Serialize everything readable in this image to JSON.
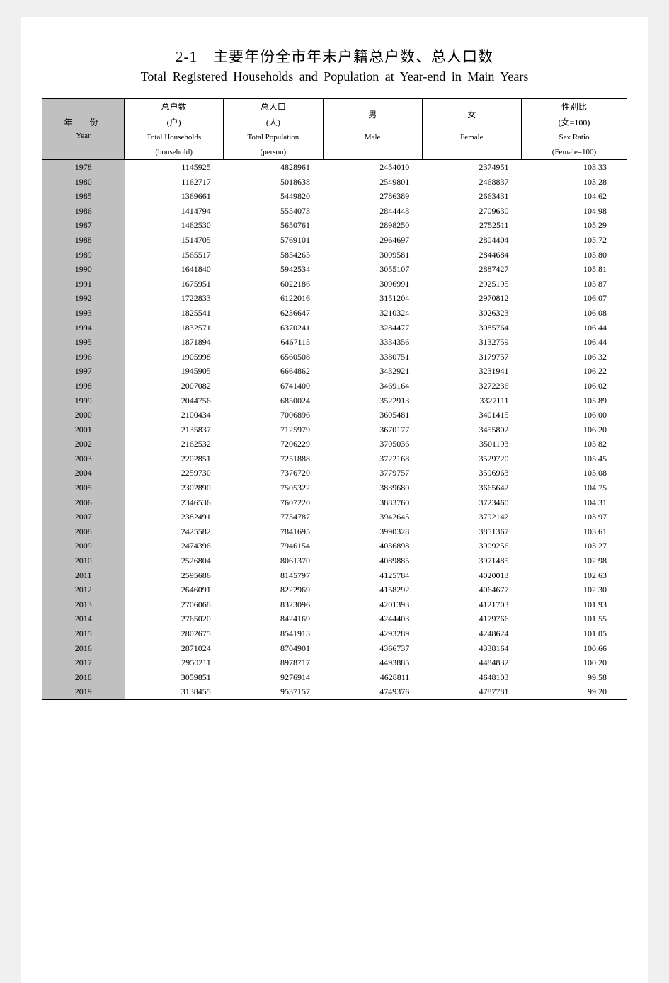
{
  "title": {
    "cn": "2-1　主要年份全市年末户籍总户数、总人口数",
    "en": "Total Registered Households and Population at Year-end in Main Years"
  },
  "headers": {
    "year": {
      "cn": "年　份",
      "en": "Year"
    },
    "households": {
      "cn": "总户数",
      "unit_cn": "(户)",
      "en": "Total Households",
      "unit_en": "(household)"
    },
    "population": {
      "cn": "总人口",
      "unit_cn": "(人)",
      "en": "Total Population",
      "unit_en": "(person)"
    },
    "male": {
      "cn": "男",
      "en": "Male"
    },
    "female": {
      "cn": "女",
      "en": "Female"
    },
    "sexratio": {
      "cn": "性别比",
      "unit_cn": "(女=100)",
      "en": "Sex Ratio",
      "unit_en": "(Female=100)"
    }
  },
  "rows": [
    {
      "year": "1978",
      "hh": "1145925",
      "pop": "4828961",
      "m": "2454010",
      "f": "2374951",
      "r": "103.33"
    },
    {
      "year": "1980",
      "hh": "1162717",
      "pop": "5018638",
      "m": "2549801",
      "f": "2468837",
      "r": "103.28"
    },
    {
      "year": "1985",
      "hh": "1369661",
      "pop": "5449820",
      "m": "2786389",
      "f": "2663431",
      "r": "104.62"
    },
    {
      "year": "1986",
      "hh": "1414794",
      "pop": "5554073",
      "m": "2844443",
      "f": "2709630",
      "r": "104.98"
    },
    {
      "year": "1987",
      "hh": "1462530",
      "pop": "5650761",
      "m": "2898250",
      "f": "2752511",
      "r": "105.29"
    },
    {
      "year": "1988",
      "hh": "1514705",
      "pop": "5769101",
      "m": "2964697",
      "f": "2804404",
      "r": "105.72"
    },
    {
      "year": "1989",
      "hh": "1565517",
      "pop": "5854265",
      "m": "3009581",
      "f": "2844684",
      "r": "105.80"
    },
    {
      "year": "1990",
      "hh": "1641840",
      "pop": "5942534",
      "m": "3055107",
      "f": "2887427",
      "r": "105.81"
    },
    {
      "year": "1991",
      "hh": "1675951",
      "pop": "6022186",
      "m": "3096991",
      "f": "2925195",
      "r": "105.87"
    },
    {
      "year": "1992",
      "hh": "1722833",
      "pop": "6122016",
      "m": "3151204",
      "f": "2970812",
      "r": "106.07"
    },
    {
      "year": "1993",
      "hh": "1825541",
      "pop": "6236647",
      "m": "3210324",
      "f": "3026323",
      "r": "106.08"
    },
    {
      "year": "1994",
      "hh": "1832571",
      "pop": "6370241",
      "m": "3284477",
      "f": "3085764",
      "r": "106.44"
    },
    {
      "year": "1995",
      "hh": "1871894",
      "pop": "6467115",
      "m": "3334356",
      "f": "3132759",
      "r": "106.44"
    },
    {
      "year": "1996",
      "hh": "1905998",
      "pop": "6560508",
      "m": "3380751",
      "f": "3179757",
      "r": "106.32"
    },
    {
      "year": "1997",
      "hh": "1945905",
      "pop": "6664862",
      "m": "3432921",
      "f": "3231941",
      "r": "106.22"
    },
    {
      "year": "1998",
      "hh": "2007082",
      "pop": "6741400",
      "m": "3469164",
      "f": "3272236",
      "r": "106.02"
    },
    {
      "year": "1999",
      "hh": "2044756",
      "pop": "6850024",
      "m": "3522913",
      "f": "3327111",
      "r": "105.89"
    },
    {
      "year": "2000",
      "hh": "2100434",
      "pop": "7006896",
      "m": "3605481",
      "f": "3401415",
      "r": "106.00"
    },
    {
      "year": "2001",
      "hh": "2135837",
      "pop": "7125979",
      "m": "3670177",
      "f": "3455802",
      "r": "106.20"
    },
    {
      "year": "2002",
      "hh": "2162532",
      "pop": "7206229",
      "m": "3705036",
      "f": "3501193",
      "r": "105.82"
    },
    {
      "year": "2003",
      "hh": "2202851",
      "pop": "7251888",
      "m": "3722168",
      "f": "3529720",
      "r": "105.45"
    },
    {
      "year": "2004",
      "hh": "2259730",
      "pop": "7376720",
      "m": "3779757",
      "f": "3596963",
      "r": "105.08"
    },
    {
      "year": "2005",
      "hh": "2302890",
      "pop": "7505322",
      "m": "3839680",
      "f": "3665642",
      "r": "104.75"
    },
    {
      "year": "2006",
      "hh": "2346536",
      "pop": "7607220",
      "m": "3883760",
      "f": "3723460",
      "r": "104.31"
    },
    {
      "year": "2007",
      "hh": "2382491",
      "pop": "7734787",
      "m": "3942645",
      "f": "3792142",
      "r": "103.97"
    },
    {
      "year": "2008",
      "hh": "2425582",
      "pop": "7841695",
      "m": "3990328",
      "f": "3851367",
      "r": "103.61"
    },
    {
      "year": "2009",
      "hh": "2474396",
      "pop": "7946154",
      "m": "4036898",
      "f": "3909256",
      "r": "103.27"
    },
    {
      "year": "2010",
      "hh": "2526804",
      "pop": "8061370",
      "m": "4089885",
      "f": "3971485",
      "r": "102.98"
    },
    {
      "year": "2011",
      "hh": "2595686",
      "pop": "8145797",
      "m": "4125784",
      "f": "4020013",
      "r": "102.63"
    },
    {
      "year": "2012",
      "hh": "2646091",
      "pop": "8222969",
      "m": "4158292",
      "f": "4064677",
      "r": "102.30"
    },
    {
      "year": "2013",
      "hh": "2706068",
      "pop": "8323096",
      "m": "4201393",
      "f": "4121703",
      "r": "101.93"
    },
    {
      "year": "2014",
      "hh": "2765020",
      "pop": "8424169",
      "m": "4244403",
      "f": "4179766",
      "r": "101.55"
    },
    {
      "year": "2015",
      "hh": "2802675",
      "pop": "8541913",
      "m": "4293289",
      "f": "4248624",
      "r": "101.05"
    },
    {
      "year": "2016",
      "hh": "2871024",
      "pop": "8704901",
      "m": "4366737",
      "f": "4338164",
      "r": "100.66"
    },
    {
      "year": "2017",
      "hh": "2950211",
      "pop": "8978717",
      "m": "4493885",
      "f": "4484832",
      "r": "100.20"
    },
    {
      "year": "2018",
      "hh": "3059851",
      "pop": "9276914",
      "m": "4628811",
      "f": "4648103",
      "r": "99.58"
    },
    {
      "year": "2019",
      "hh": "3138455",
      "pop": "9537157",
      "m": "4749376",
      "f": "4787781",
      "r": "99.20"
    }
  ],
  "style": {
    "page_bg": "#f0f0f0",
    "paper_bg": "#ffffff",
    "shade_bg": "#c0c0c0",
    "border_color": "#000000",
    "text_color": "#000000",
    "title_cn_fontsize": 21,
    "title_en_fontsize": 18,
    "table_fontsize": 12
  }
}
